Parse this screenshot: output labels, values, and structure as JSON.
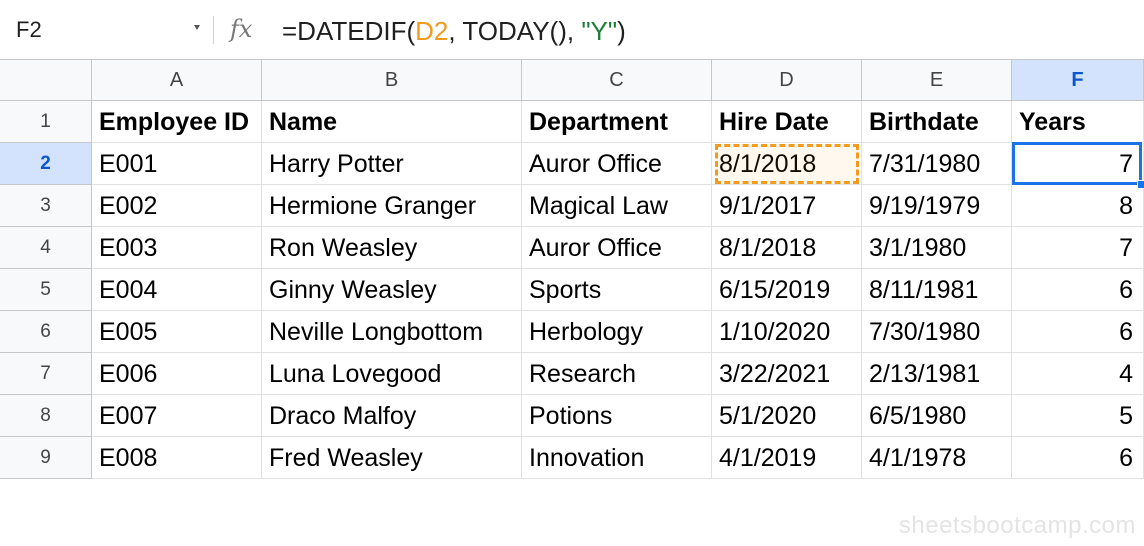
{
  "formula_bar": {
    "cell_ref": "F2",
    "fx_label": "fx",
    "formula_prefix": "=DATEDIF(",
    "formula_ref": "D2",
    "formula_middle": ", TODAY(), ",
    "formula_string": "\"Y\"",
    "formula_suffix": ")"
  },
  "columns": [
    "A",
    "B",
    "C",
    "D",
    "E",
    "F"
  ],
  "selected_column": "F",
  "selected_row": "2",
  "row_numbers": [
    "1",
    "2",
    "3",
    "4",
    "5",
    "6",
    "7",
    "8",
    "9"
  ],
  "headers": [
    "Employee ID",
    "Name",
    "Department",
    "Hire Date",
    "Birthdate",
    "Years"
  ],
  "rows": [
    [
      "E001",
      "Harry Potter",
      "Auror Office",
      "8/1/2018",
      "7/31/1980",
      "7"
    ],
    [
      "E002",
      "Hermione Granger",
      "Magical Law",
      "9/1/2017",
      "9/19/1979",
      "8"
    ],
    [
      "E003",
      "Ron Weasley",
      "Auror Office",
      "8/1/2018",
      "3/1/1980",
      "7"
    ],
    [
      "E004",
      "Ginny Weasley",
      "Sports",
      "6/15/2019",
      "8/11/1981",
      "6"
    ],
    [
      "E005",
      "Neville Longbottom",
      "Herbology",
      "1/10/2020",
      "7/30/1980",
      "6"
    ],
    [
      "E006",
      "Luna Lovegood",
      "Research",
      "3/22/2021",
      "2/13/1981",
      "4"
    ],
    [
      "E007",
      "Draco Malfoy",
      "Potions",
      "5/1/2020",
      "6/5/1980",
      "5"
    ],
    [
      "E008",
      "Fred Weasley",
      "Innovation",
      "4/1/2019",
      "4/1/1978",
      "6"
    ]
  ],
  "watermark": "sheetsbootcamp.com",
  "colors": {
    "reference_highlight": "#f29b1f",
    "selection": "#1a73e8",
    "header_selected_bg": "#d3e3fd",
    "string_literal": "#188038"
  }
}
